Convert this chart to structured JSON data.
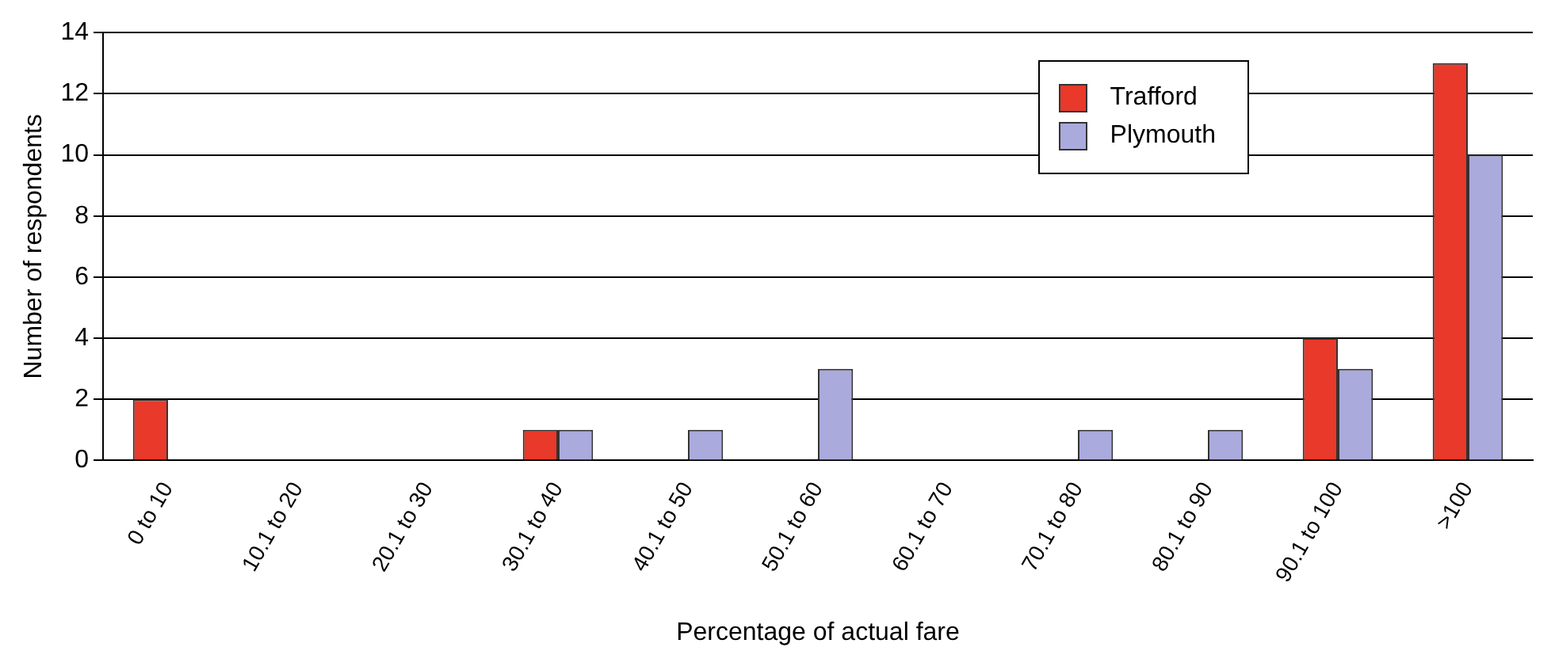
{
  "chart_data": {
    "type": "bar",
    "xlabel": "Percentage of actual fare",
    "ylabel": "Number of respondents",
    "categories": [
      "0 to 10",
      "10.1 to 20",
      "20.1 to 30",
      "30.1 to 40",
      "40.1 to 50",
      "50.1 to 60",
      "60.1 to 70",
      "70.1 to 80",
      "80.1 to 90",
      "90.1 to 100",
      ">100"
    ],
    "series": [
      {
        "name": "Trafford",
        "color": "#e8392a",
        "values": [
          2,
          0,
          0,
          1,
          0,
          0,
          0,
          0,
          0,
          4,
          13
        ]
      },
      {
        "name": "Plymouth",
        "color": "#aaaadd",
        "values": [
          0,
          0,
          0,
          1,
          1,
          3,
          0,
          1,
          1,
          3,
          10
        ]
      }
    ],
    "ylim": [
      0,
      14
    ],
    "yticks": [
      0,
      2,
      4,
      6,
      8,
      10,
      12,
      14
    ],
    "grid": "y",
    "legend": "top right"
  }
}
